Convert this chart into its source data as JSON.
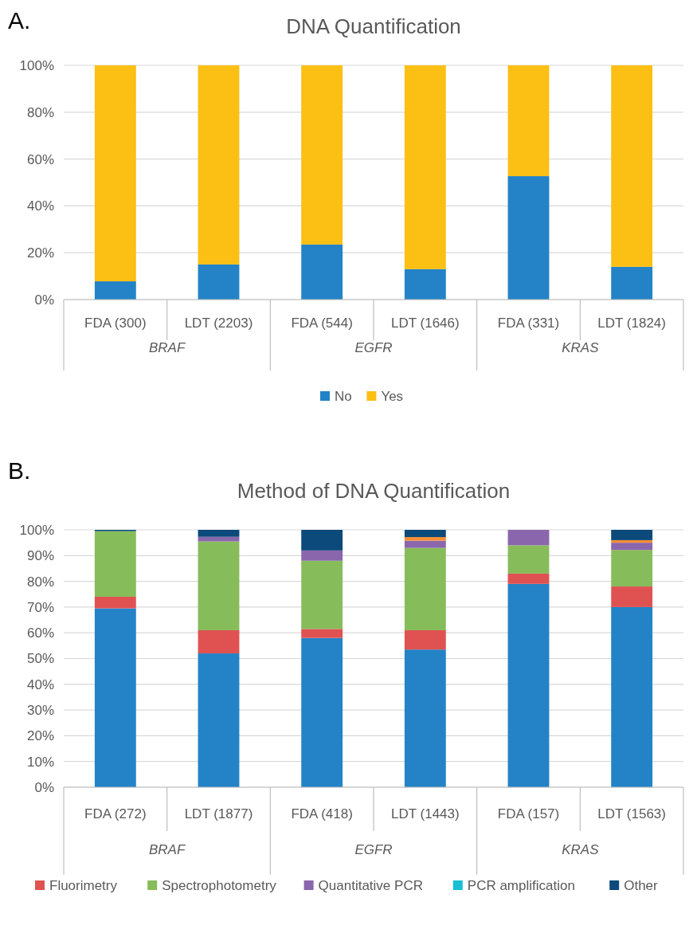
{
  "chart_data": [
    {
      "type": "bar",
      "title": "DNA Quantification",
      "stacked": true,
      "grid": "y",
      "legend": "bottom",
      "annotations": [
        "A.",
        "BRAF",
        "EGFR",
        "KRAS"
      ],
      "categories": [
        "FDA (300)",
        "LDT (2203)",
        "FDA (544)",
        "LDT (1646)",
        "FDA (331)",
        "LDT (1824)"
      ],
      "ylim": [
        0,
        100
      ],
      "yticks": [
        {
          "value": 0,
          "label": "0%"
        },
        {
          "value": 20,
          "label": "20%"
        },
        {
          "value": 40,
          "label": "40%"
        },
        {
          "value": 60,
          "label": "60%"
        },
        {
          "value": 80,
          "label": "80%"
        },
        {
          "value": 100,
          "label": "100%"
        }
      ],
      "series": [
        {
          "name": "No",
          "color": "#2383c6",
          "values": [
            7.8,
            15,
            23.5,
            13,
            52.7,
            14
          ]
        },
        {
          "name": "Yes",
          "color": "#fcbf14",
          "values": [
            92.2,
            85,
            76.5,
            87,
            47.3,
            86
          ]
        }
      ]
    },
    {
      "type": "bar",
      "title": "Method of DNA Quantification",
      "stacked": true,
      "grid": "y",
      "legend": "bottom",
      "annotations": [
        "B.",
        "BRAF",
        "EGFR",
        "KRAS"
      ],
      "categories": [
        "FDA (272)",
        "LDT (1877)",
        "FDA (418)",
        "LDT (1443)",
        "FDA (157)",
        "LDT (1563)"
      ],
      "ylim": [
        0,
        100
      ],
      "yticks": [
        {
          "value": 0,
          "label": "0%"
        },
        {
          "value": 10,
          "label": "10%"
        },
        {
          "value": 20,
          "label": "20%"
        },
        {
          "value": 30,
          "label": "30%"
        },
        {
          "value": 40,
          "label": "40%"
        },
        {
          "value": 50,
          "label": "50%"
        },
        {
          "value": 60,
          "label": "60%"
        },
        {
          "value": 70,
          "label": "70%"
        },
        {
          "value": 80,
          "label": "80%"
        },
        {
          "value": 90,
          "label": "90%"
        },
        {
          "value": 100,
          "label": "100%"
        }
      ],
      "series": [
        {
          "color": "#2383c6",
          "values": [
            69.5,
            52,
            58,
            53.5,
            79,
            70
          ]
        },
        {
          "name": "Fluorimetry",
          "color": "#e05252",
          "values": [
            4.5,
            9,
            3.5,
            7.5,
            4,
            8
          ]
        },
        {
          "name": "Spectrophotometry",
          "color": "#87bc5a",
          "values": [
            25.5,
            34.5,
            26.5,
            32,
            11,
            14.2
          ]
        },
        {
          "name": "Quantitative PCR",
          "color": "#8a66ad",
          "values": [
            0,
            1.8,
            4,
            2.8,
            6,
            2.8
          ]
        },
        {
          "name": "PCR amplification",
          "color": "#17bfd4",
          "values": [
            0,
            0,
            0,
            0,
            0,
            0
          ]
        },
        {
          "color": "#f68d36",
          "values": [
            0,
            0,
            0,
            1.4,
            0,
            1
          ]
        },
        {
          "name": "Other",
          "color": "#0b4a7a",
          "values": [
            0.5,
            2.7,
            8,
            2.8,
            0,
            4
          ]
        }
      ]
    }
  ]
}
